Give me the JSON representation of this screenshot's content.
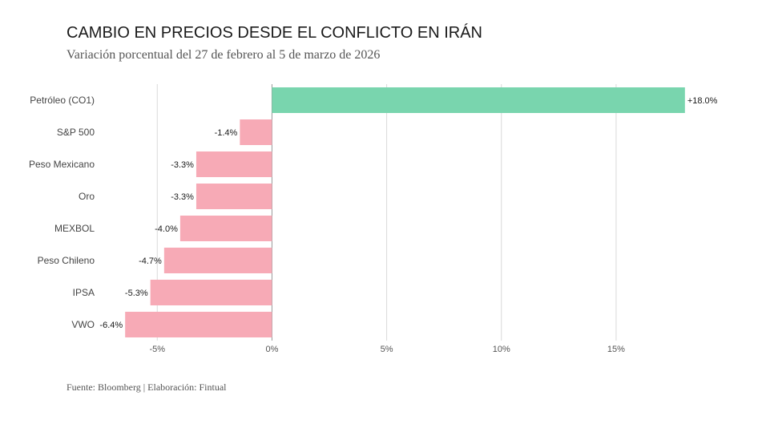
{
  "header": {
    "title": "CAMBIO EN PRECIOS DESDE EL CONFLICTO EN IRÁN",
    "subtitle": "Variación porcentual del 27 de febrero al 5 de marzo de 2026"
  },
  "footer": {
    "source": "Fuente: Bloomberg | Elaboración: Fintual"
  },
  "chart_data": {
    "type": "bar",
    "orientation": "horizontal",
    "title": "CAMBIO EN PRECIOS DESDE EL CONFLICTO EN IRÁN",
    "subtitle": "Variación porcentual del 27 de febrero al 5 de marzo de 2026",
    "categories": [
      "Petróleo (CO1)",
      "S&P 500",
      "Peso Mexicano",
      "Oro",
      "MEXBOL",
      "Peso Chileno",
      "IPSA",
      "VWO"
    ],
    "values": [
      18.0,
      -1.4,
      -3.3,
      -3.3,
      -4.0,
      -4.7,
      -5.3,
      -6.4
    ],
    "value_labels": [
      "+18.0%",
      "-1.4%",
      "-3.3%",
      "-3.3%",
      "-4.0%",
      "-4.7%",
      "-5.3%",
      "-6.4%"
    ],
    "xlim": [
      -7.0,
      18.6
    ],
    "xticks": [
      -5,
      0,
      5,
      10,
      15
    ],
    "xtick_labels": [
      "-5%",
      "0%",
      "5%",
      "10%",
      "15%"
    ],
    "xlabel": "",
    "ylabel": "",
    "grid": true,
    "colors": {
      "positive": "#79d5ae",
      "negative": "#f7aab6",
      "grid": "#d9d9d9",
      "zero": "#999999"
    }
  }
}
